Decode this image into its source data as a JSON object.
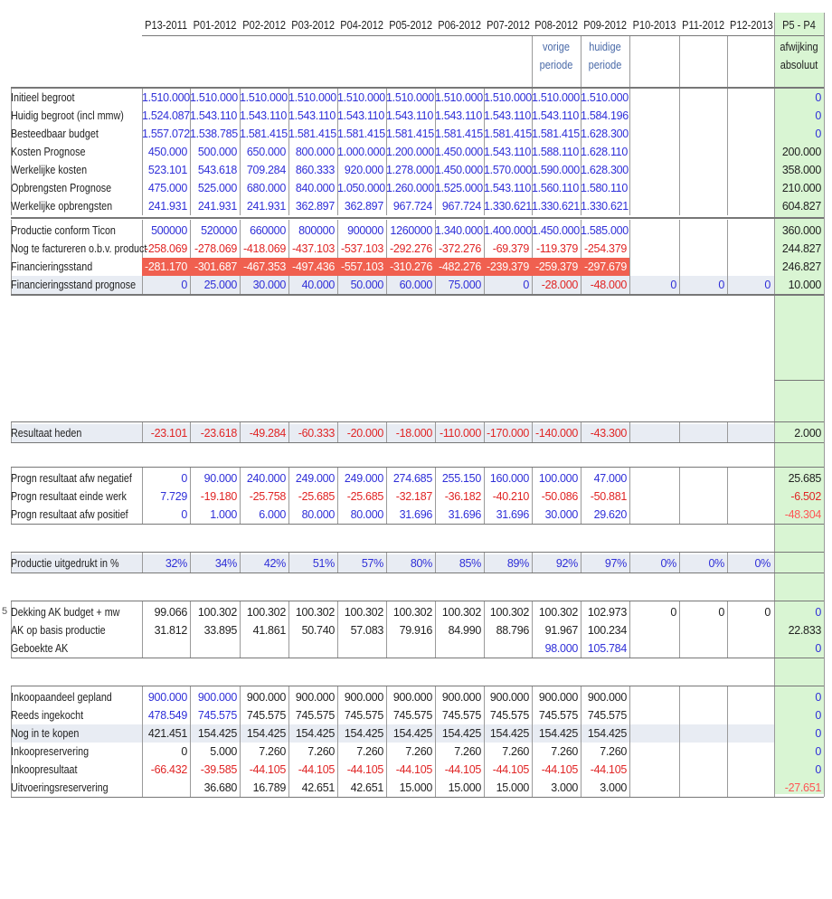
{
  "colors": {
    "blue": "#2f2fd8",
    "red": "#e02525",
    "highlight": "#f06050",
    "green_column": "#d9f5d3",
    "band": "#e8ecf3"
  },
  "columns": [
    "P13-2011",
    "P01-2012",
    "P02-2012",
    "P03-2012",
    "P04-2012",
    "P05-2012",
    "P06-2012",
    "P07-2012",
    "P08-2012",
    "P09-2012",
    "P10-2013",
    "P11-2012",
    "P12-2013"
  ],
  "delta_header": "P5 - P4",
  "subheaders": {
    "p08": [
      "vorige",
      "periode"
    ],
    "p09": [
      "huidige",
      "periode"
    ],
    "delta": [
      "afwijking",
      "absoluut"
    ]
  },
  "row_marker": "5",
  "sections": [
    {
      "rows": [
        {
          "label": "Initieel begroot",
          "values": [
            "1.510.000",
            "1.510.000",
            "1.510.000",
            "1.510.000",
            "1.510.000",
            "1.510.000",
            "1.510.000",
            "1.510.000",
            "1.510.000",
            "1.510.000",
            "",
            "",
            ""
          ],
          "delta": "0"
        },
        {
          "label": "Huidig begroot (incl mmw)",
          "values": [
            "1.524.087",
            "1.543.110",
            "1.543.110",
            "1.543.110",
            "1.543.110",
            "1.543.110",
            "1.543.110",
            "1.543.110",
            "1.543.110",
            "1.584.196",
            "",
            "",
            ""
          ],
          "delta": "0"
        },
        {
          "label": "Besteedbaar budget",
          "values": [
            "1.557.072",
            "1.538.785",
            "1.581.415",
            "1.581.415",
            "1.581.415",
            "1.581.415",
            "1.581.415",
            "1.581.415",
            "1.581.415",
            "1.628.300",
            "",
            "",
            ""
          ],
          "delta": "0"
        },
        {
          "label": "Kosten Prognose",
          "values": [
            "450.000",
            "500.000",
            "650.000",
            "800.000",
            "1.000.000",
            "1.200.000",
            "1.450.000",
            "1.543.110",
            "1.588.110",
            "1.628.110",
            "",
            "",
            ""
          ],
          "delta": "200.000"
        },
        {
          "label": "Werkelijke kosten",
          "values": [
            "523.101",
            "543.618",
            "709.284",
            "860.333",
            "920.000",
            "1.278.000",
            "1.450.000",
            "1.570.000",
            "1.590.000",
            "1.628.300",
            "",
            "",
            ""
          ],
          "delta": "358.000"
        },
        {
          "label": "Opbrengsten Prognose",
          "values": [
            "475.000",
            "525.000",
            "680.000",
            "840.000",
            "1.050.000",
            "1.260.000",
            "1.525.000",
            "1.543.110",
            "1.560.110",
            "1.580.110",
            "",
            "",
            ""
          ],
          "delta": "210.000"
        },
        {
          "label": "Werkelijke opbrengsten",
          "values": [
            "241.931",
            "241.931",
            "241.931",
            "362.897",
            "362.897",
            "967.724",
            "967.724",
            "1.330.621",
            "1.330.621",
            "1.330.621",
            "",
            "",
            ""
          ],
          "delta": "604.827"
        }
      ]
    },
    {
      "rows": [
        {
          "label": "Productie conform Ticon",
          "values": [
            "500000",
            "520000",
            "660000",
            "800000",
            "900000",
            "1260000",
            "1.340.000",
            "1.400.000",
            "1.450.000",
            "1.585.000",
            "",
            "",
            ""
          ],
          "delta": "360.000"
        },
        {
          "label": "Nog te factureren o.b.v. productie",
          "values": [
            "-258.069",
            "-278.069",
            "-418.069",
            "-437.103",
            "-537.103",
            "-292.276",
            "-372.276",
            "-69.379",
            "-119.379",
            "-254.379",
            "",
            "",
            ""
          ],
          "delta": "244.827"
        },
        {
          "label": "Financieringsstand",
          "values": [
            "-281.170",
            "-301.687",
            "-467.353",
            "-497.436",
            "-557.103",
            "-310.276",
            "-482.276",
            "-239.379",
            "-259.379",
            "-297.679",
            "",
            "",
            ""
          ],
          "delta": "246.827"
        },
        {
          "label": "Financieringsstand prognose",
          "values": [
            "0",
            "25.000",
            "30.000",
            "40.000",
            "50.000",
            "60.000",
            "75.000",
            "0",
            "-28.000",
            "-48.000",
            "0",
            "0",
            "0"
          ],
          "delta": "10.000"
        }
      ]
    },
    {
      "rows": [
        {
          "label": "Resultaat heden",
          "values": [
            "-23.101",
            "-23.618",
            "-49.284",
            "-60.333",
            "-20.000",
            "-18.000",
            "-110.000",
            "-170.000",
            "-140.000",
            "-43.300",
            "",
            "",
            ""
          ],
          "delta": "2.000"
        }
      ]
    },
    {
      "rows": [
        {
          "label": "Progn resultaat afw negatief",
          "values": [
            "0",
            "90.000",
            "240.000",
            "249.000",
            "249.000",
            "274.685",
            "255.150",
            "160.000",
            "100.000",
            "47.000",
            "",
            "",
            ""
          ],
          "delta": "25.685"
        },
        {
          "label": "Progn resultaat einde werk",
          "values": [
            "7.729",
            "-19.180",
            "-25.758",
            "-25.685",
            "-25.685",
            "-32.187",
            "-36.182",
            "-40.210",
            "-50.086",
            "-50.881",
            "",
            "",
            ""
          ],
          "delta": "-6.502"
        },
        {
          "label": "Progn resultaat afw positief",
          "values": [
            "0",
            "1.000",
            "6.000",
            "80.000",
            "80.000",
            "31.696",
            "31.696",
            "31.696",
            "30.000",
            "29.620",
            "",
            "",
            ""
          ],
          "delta": "-48.304"
        }
      ]
    },
    {
      "rows": [
        {
          "label": "Productie uitgedrukt in %",
          "values": [
            "32%",
            "34%",
            "42%",
            "51%",
            "57%",
            "80%",
            "85%",
            "89%",
            "92%",
            "97%",
            "0%",
            "0%",
            "0%"
          ],
          "delta": ""
        }
      ]
    },
    {
      "rows": [
        {
          "label": "Dekking AK budget + mw",
          "values": [
            "99.066",
            "100.302",
            "100.302",
            "100.302",
            "100.302",
            "100.302",
            "100.302",
            "100.302",
            "100.302",
            "102.973",
            "0",
            "0",
            "0"
          ],
          "delta": "0"
        },
        {
          "label": "AK op basis productie",
          "values": [
            "31.812",
            "33.895",
            "41.861",
            "50.740",
            "57.083",
            "79.916",
            "84.990",
            "88.796",
            "91.967",
            "100.234",
            "",
            "",
            ""
          ],
          "delta": "22.833"
        },
        {
          "label": "Geboekte AK",
          "values": [
            "",
            "",
            "",
            "",
            "",
            "",
            "",
            "",
            "98.000",
            "105.784",
            "",
            "",
            ""
          ],
          "delta": "0"
        }
      ]
    },
    {
      "rows": [
        {
          "label": "Inkoopaandeel gepland",
          "values": [
            "900.000",
            "900.000",
            "900.000",
            "900.000",
            "900.000",
            "900.000",
            "900.000",
            "900.000",
            "900.000",
            "900.000",
            "",
            "",
            ""
          ],
          "delta": "0"
        },
        {
          "label": "Reeds ingekocht",
          "values": [
            "478.549",
            "745.575",
            "745.575",
            "745.575",
            "745.575",
            "745.575",
            "745.575",
            "745.575",
            "745.575",
            "745.575",
            "",
            "",
            ""
          ],
          "delta": "0"
        },
        {
          "label": "Nog in te kopen",
          "values": [
            "421.451",
            "154.425",
            "154.425",
            "154.425",
            "154.425",
            "154.425",
            "154.425",
            "154.425",
            "154.425",
            "154.425",
            "",
            "",
            ""
          ],
          "delta": "0"
        },
        {
          "label": "Inkoopreservering",
          "values": [
            "0",
            "5.000",
            "7.260",
            "7.260",
            "7.260",
            "7.260",
            "7.260",
            "7.260",
            "7.260",
            "7.260",
            "",
            "",
            ""
          ],
          "delta": "0"
        },
        {
          "label": "Inkoopresultaat",
          "values": [
            "-66.432",
            "-39.585",
            "-44.105",
            "-44.105",
            "-44.105",
            "-44.105",
            "-44.105",
            "-44.105",
            "-44.105",
            "-44.105",
            "",
            "",
            ""
          ],
          "delta": "0"
        },
        {
          "label": "Uitvoeringsreservering",
          "values": [
            "",
            "36.680",
            "16.789",
            "42.651",
            "42.651",
            "15.000",
            "15.000",
            "15.000",
            "3.000",
            "3.000",
            "",
            "",
            ""
          ],
          "delta": "-27.651"
        }
      ]
    }
  ]
}
